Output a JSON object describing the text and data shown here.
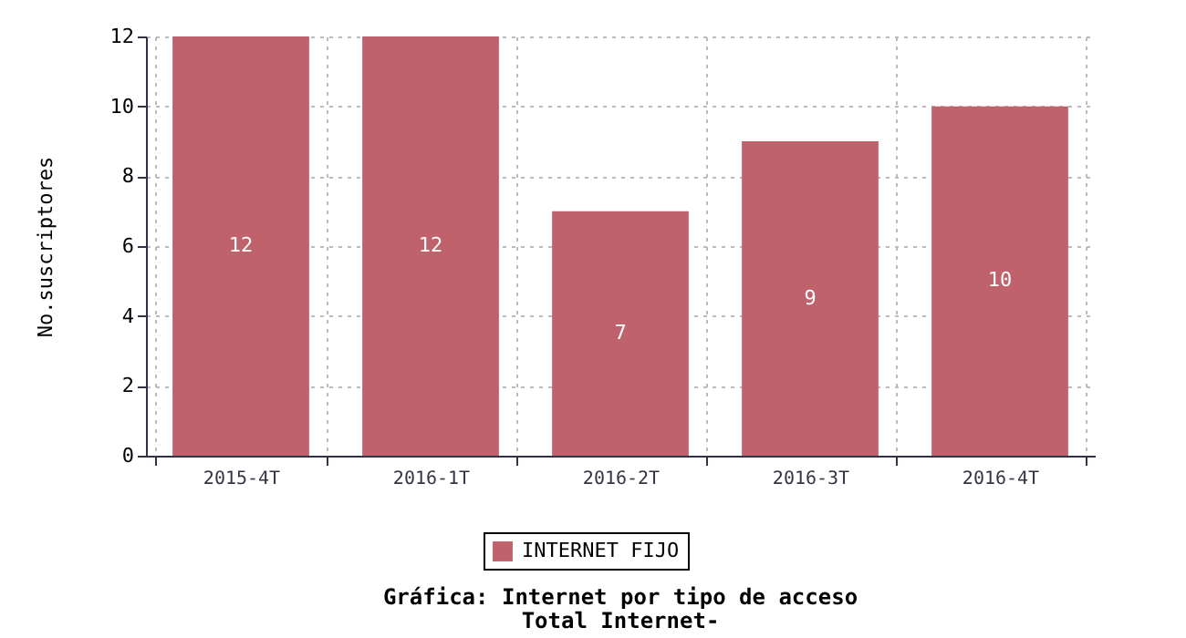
{
  "chart_data": {
    "type": "bar",
    "title": "Gráfica: Internet por tipo de acceso",
    "subtitle": "Total Internet-",
    "ylabel": "No.suscriptores",
    "categories": [
      "2015-4T",
      "2016-1T",
      "2016-2T",
      "2016-3T",
      "2016-4T"
    ],
    "series": [
      {
        "name": "INTERNET FIJO",
        "color": "#c0626b",
        "values": [
          12,
          12,
          7,
          9,
          10
        ]
      }
    ],
    "ylim": [
      0,
      12
    ],
    "yticks": [
      0,
      2,
      4,
      6,
      8,
      10,
      12
    ],
    "grid": true,
    "legend": "bottom",
    "data_labels": true
  }
}
